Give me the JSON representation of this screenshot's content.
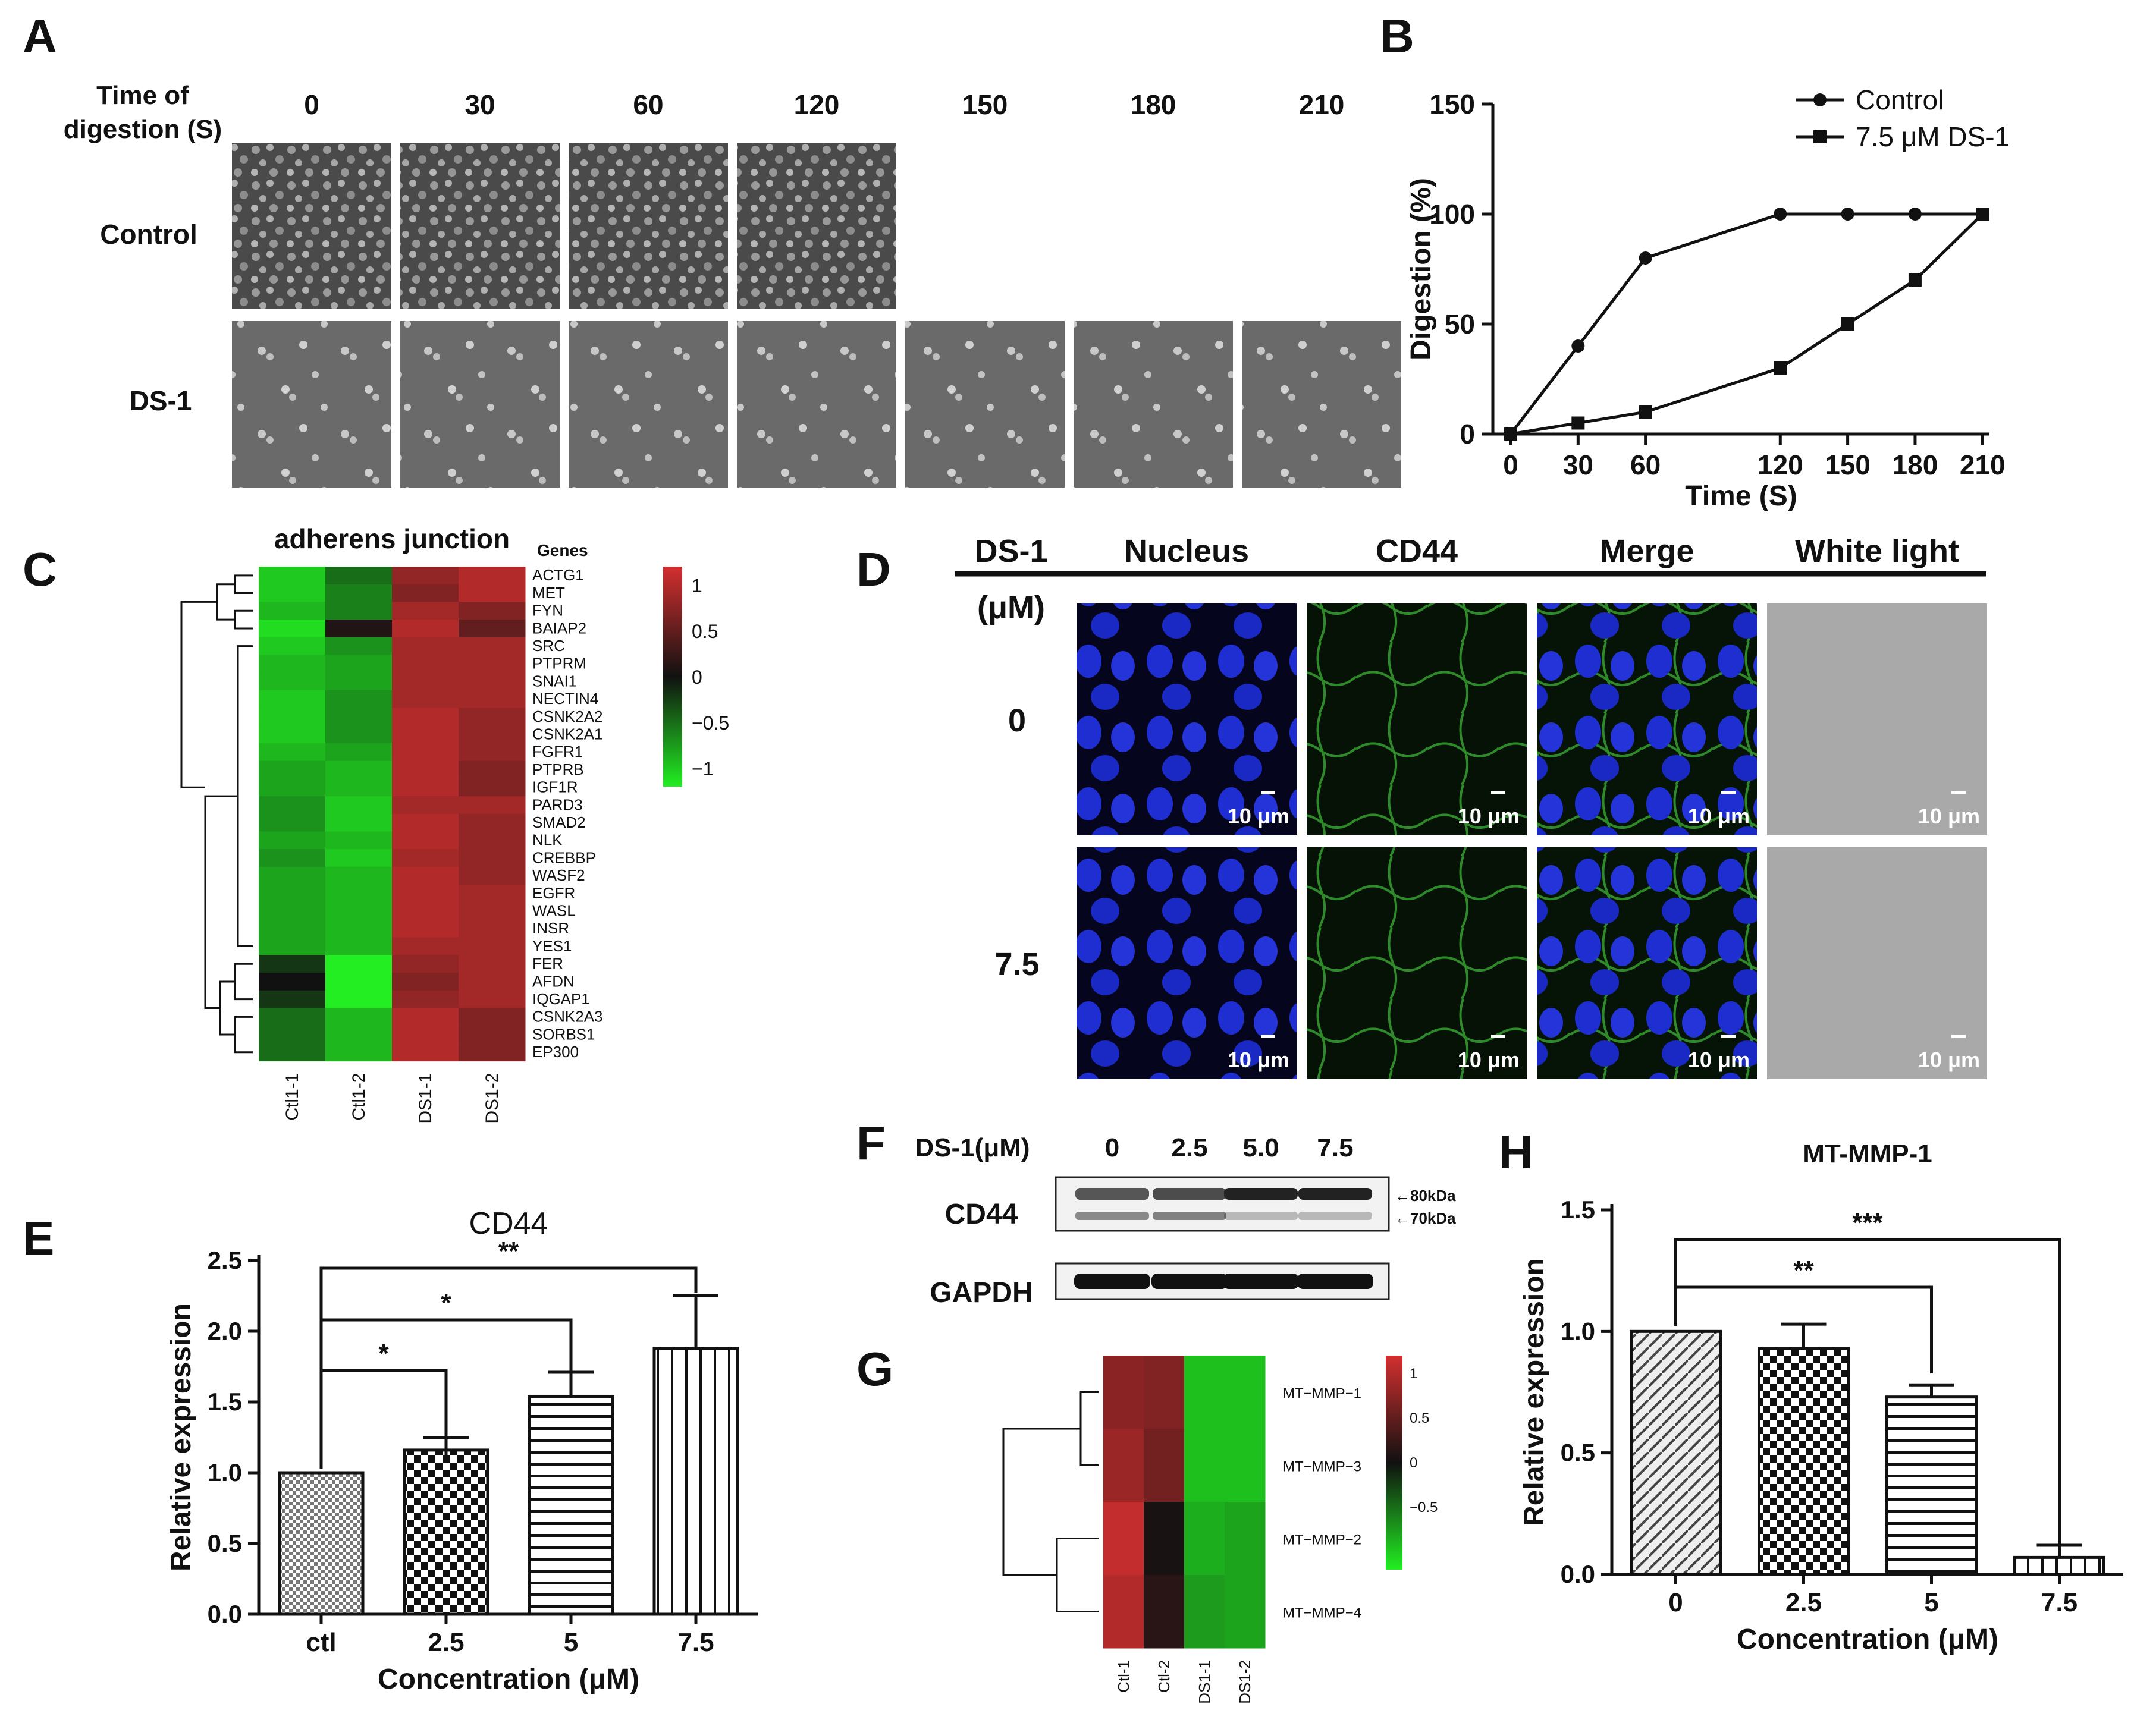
{
  "panels": {
    "A": {
      "label": "A",
      "header_line1": "Time of",
      "header_line2": "digestion (S)",
      "times": [
        "0",
        "30",
        "60",
        "120",
        "150",
        "180",
        "210"
      ],
      "rows": [
        "Control",
        "DS-1"
      ]
    },
    "B": {
      "label": "B",
      "chart_data": {
        "type": "line",
        "xlabel": "Time (S)",
        "ylabel": "Digestion (%)",
        "x": [
          0,
          30,
          60,
          120,
          150,
          180,
          210
        ],
        "xticks": [
          "0",
          "30",
          "60",
          "120",
          "150",
          "180",
          "210"
        ],
        "yticks": [
          "0",
          "50",
          "100",
          "150"
        ],
        "ylim": [
          0,
          150
        ],
        "legend_position": "top-right",
        "series": [
          {
            "name": "Control",
            "marker": "circle",
            "values": [
              0,
              40,
              80,
              100,
              100,
              100,
              100
            ]
          },
          {
            "name": "7.5 μM DS-1",
            "marker": "square",
            "values": [
              0,
              5,
              10,
              30,
              50,
              70,
              100
            ]
          }
        ]
      }
    },
    "C": {
      "label": "C",
      "chart_data": {
        "type": "heatmap",
        "title": "adherens junction",
        "genes_header": "Genes",
        "columns": [
          "Ctl1-1",
          "Ctl1-2",
          "DS1-1",
          "DS1-2"
        ],
        "rows": [
          "ACTG1",
          "MET",
          "FYN",
          "BAIAP2",
          "SRC",
          "PTPRM",
          "SNAI1",
          "NECTIN4",
          "CSNK2A2",
          "CSNK2A1",
          "FGFR1",
          "PTPRB",
          "IGF1R",
          "PARD3",
          "SMAD2",
          "NLK",
          "CREBBP",
          "WASF2",
          "EGFR",
          "WASL",
          "INSR",
          "YES1",
          "FER",
          "AFDN",
          "IQGAP1",
          "CSNK2A3",
          "SORBS1",
          "EP300"
        ],
        "values": [
          [
            -1.0,
            -0.5,
            0.8,
            1.0
          ],
          [
            -1.0,
            -0.6,
            0.7,
            1.0
          ],
          [
            -0.9,
            -0.6,
            0.9,
            0.7
          ],
          [
            -1.1,
            0.1,
            1.0,
            0.5
          ],
          [
            -1.0,
            -0.7,
            0.9,
            0.9
          ],
          [
            -0.9,
            -0.8,
            0.9,
            0.9
          ],
          [
            -0.9,
            -0.8,
            0.9,
            0.9
          ],
          [
            -1.0,
            -0.7,
            0.9,
            0.9
          ],
          [
            -1.0,
            -0.7,
            1.0,
            0.8
          ],
          [
            -1.0,
            -0.7,
            1.0,
            0.8
          ],
          [
            -0.9,
            -0.8,
            1.0,
            0.8
          ],
          [
            -0.8,
            -0.9,
            1.0,
            0.7
          ],
          [
            -0.8,
            -0.9,
            1.0,
            0.7
          ],
          [
            -0.7,
            -1.0,
            0.9,
            0.9
          ],
          [
            -0.7,
            -1.0,
            1.0,
            0.8
          ],
          [
            -0.8,
            -0.9,
            1.0,
            0.8
          ],
          [
            -0.7,
            -1.0,
            0.9,
            0.8
          ],
          [
            -0.8,
            -0.9,
            1.0,
            0.8
          ],
          [
            -0.8,
            -0.9,
            1.0,
            0.9
          ],
          [
            -0.8,
            -0.9,
            1.0,
            0.9
          ],
          [
            -0.8,
            -0.9,
            1.0,
            0.9
          ],
          [
            -0.8,
            -0.9,
            0.9,
            0.9
          ],
          [
            -0.2,
            -1.2,
            0.8,
            0.9
          ],
          [
            0.0,
            -1.2,
            0.7,
            0.9
          ],
          [
            -0.2,
            -1.2,
            0.8,
            0.9
          ],
          [
            -0.5,
            -0.9,
            1.0,
            0.7
          ],
          [
            -0.5,
            -0.9,
            1.0,
            0.7
          ],
          [
            -0.5,
            -0.9,
            1.0,
            0.7
          ]
        ],
        "colorbar_ticks": [
          "1",
          "0.5",
          "0",
          "−0.5",
          "−1"
        ],
        "colorbar_range": [
          -1.2,
          1.2
        ],
        "colors": {
          "high": "#d32f2f",
          "mid": "#111111",
          "low": "#22ee22"
        }
      }
    },
    "D": {
      "label": "D",
      "row_header": "DS-1",
      "unit_header": "(μM)",
      "columns": [
        "Nucleus",
        "CD44",
        "Merge",
        "White light"
      ],
      "rows": [
        "0",
        "7.5"
      ],
      "scale_bar": "10 μm"
    },
    "E": {
      "label": "E",
      "chart_data": {
        "type": "bar",
        "title": "CD44",
        "xlabel": "Concentration (μM)",
        "ylabel": "Relative expression",
        "categories": [
          "ctl",
          "2.5",
          "5",
          "7.5"
        ],
        "values": [
          1.0,
          1.16,
          1.54,
          1.88
        ],
        "errors": [
          0,
          0.09,
          0.17,
          0.37
        ],
        "ylim": [
          0,
          2.5
        ],
        "yticks": [
          "0.0",
          "0.5",
          "1.0",
          "1.5",
          "2.0",
          "2.5"
        ],
        "significance": [
          {
            "from": "ctl",
            "to": "2.5",
            "label": "*"
          },
          {
            "from": "ctl",
            "to": "5",
            "label": "*"
          },
          {
            "from": "ctl",
            "to": "7.5",
            "label": "**"
          }
        ]
      }
    },
    "F": {
      "label": "F",
      "treatment_label": "DS-1(μM)",
      "lanes": [
        "0",
        "2.5",
        "5.0",
        "7.5"
      ],
      "proteins": [
        "CD44",
        "GAPDH"
      ],
      "markers": [
        "←80kDa",
        "←70kDa"
      ]
    },
    "G": {
      "label": "G",
      "chart_data": {
        "type": "heatmap",
        "columns": [
          "Ctl-1",
          "Ctl-2",
          "DS1-1",
          "DS1-2"
        ],
        "rows": [
          "MT−MMP−1",
          "MT−MMP−3",
          "MT−MMP−2",
          "MT−MMP−4"
        ],
        "values": [
          [
            0.75,
            0.7,
            -0.95,
            -0.95
          ],
          [
            0.85,
            0.6,
            -0.95,
            -0.95
          ],
          [
            1.1,
            0.05,
            -0.85,
            -0.8
          ],
          [
            1.0,
            0.15,
            -0.75,
            -0.8
          ]
        ],
        "colorbar_ticks": [
          "1",
          "0.5",
          "0",
          "−0.5"
        ],
        "colorbar_range": [
          -1.2,
          1.2
        ]
      }
    },
    "H": {
      "label": "H",
      "chart_data": {
        "type": "bar",
        "title": "MT-MMP-1",
        "xlabel": "Concentration (μM)",
        "ylabel": "Relative expression",
        "categories": [
          "0",
          "2.5",
          "5",
          "7.5"
        ],
        "values": [
          1.0,
          0.93,
          0.73,
          0.07
        ],
        "errors": [
          0,
          0.1,
          0.05,
          0.05
        ],
        "ylim": [
          0,
          1.5
        ],
        "yticks": [
          "0.0",
          "0.5",
          "1.0",
          "1.5"
        ],
        "significance": [
          {
            "from": "0",
            "to": "5",
            "label": "**"
          },
          {
            "from": "0",
            "to": "7.5",
            "label": "***"
          }
        ]
      }
    }
  }
}
